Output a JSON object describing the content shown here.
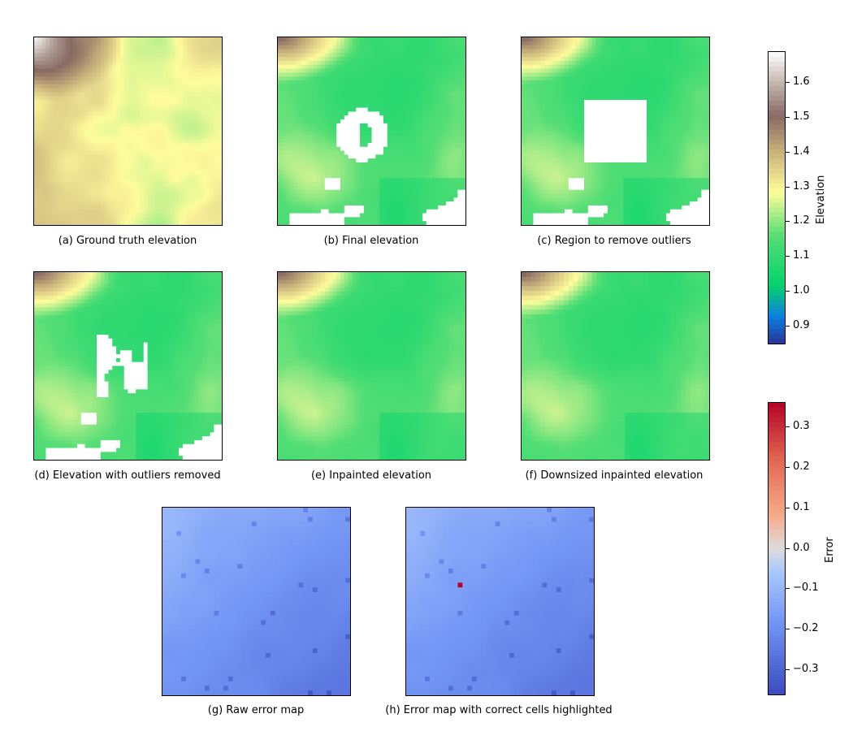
{
  "chart_data": [
    {
      "type": "heatmap",
      "caption": "(a) Ground truth elevation",
      "colormap": "terrain",
      "variant": "truth"
    },
    {
      "type": "heatmap",
      "caption": "(b) Final elevation",
      "colormap": "terrain",
      "variant": "final"
    },
    {
      "type": "heatmap",
      "caption": "(c) Region to remove outliers",
      "colormap": "terrain",
      "variant": "region"
    },
    {
      "type": "heatmap",
      "caption": "(d) Elevation with outliers removed",
      "colormap": "terrain",
      "variant": "removed"
    },
    {
      "type": "heatmap",
      "caption": "(e) Inpainted elevation",
      "colormap": "terrain",
      "variant": "inpainted"
    },
    {
      "type": "heatmap",
      "caption": "(f) Downsized inpainted elevation",
      "colormap": "terrain",
      "variant": "downsized"
    },
    {
      "type": "heatmap",
      "caption": "(g) Raw error map",
      "colormap": "coolwarm",
      "variant": "error"
    },
    {
      "type": "heatmap",
      "caption": "(h) Error map with correct cells highlighted",
      "colormap": "coolwarm",
      "variant": "error_highlight"
    }
  ],
  "colorbars": {
    "elevation": {
      "label": "Elevation",
      "range": [
        0.85,
        1.69
      ],
      "ticks": [
        "1.6",
        "1.5",
        "1.4",
        "1.3",
        "1.2",
        "1.1",
        "1.0",
        "0.9"
      ],
      "tick_values": [
        1.6,
        1.5,
        1.4,
        1.3,
        1.2,
        1.1,
        1.0,
        0.9
      ],
      "colors": [
        "#ffffff",
        "#876a63",
        "#fffc9c",
        "#04d36c",
        "#0090ee",
        "#2a3397"
      ]
    },
    "error": {
      "label": "Error",
      "range": [
        -0.36,
        0.36
      ],
      "ticks": [
        "0.3",
        "0.2",
        "0.1",
        "0.0",
        "−0.1",
        "−0.2",
        "−0.3"
      ],
      "tick_values": [
        0.3,
        0.2,
        0.1,
        0.0,
        -0.1,
        -0.2,
        -0.3
      ],
      "colors": [
        "#b40426",
        "#f7a889",
        "#dddcdc",
        "#aac7fd",
        "#3b4cc0"
      ]
    }
  }
}
